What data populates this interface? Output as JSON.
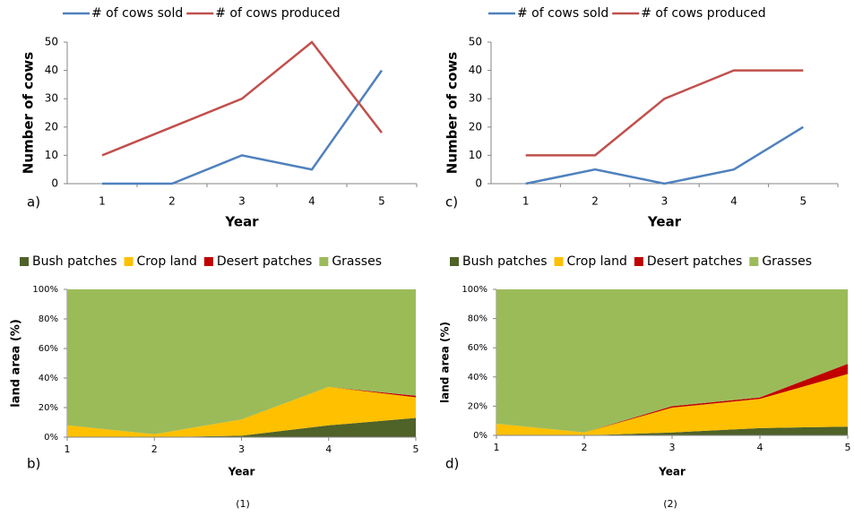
{
  "chart_data": [
    {
      "type": "line",
      "panel_label": "a)",
      "ylabel": "Number of cows",
      "xlabel": "Year",
      "categories": [
        "1",
        "2",
        "3",
        "4",
        "5"
      ],
      "series": [
        {
          "name": "# of cows sold",
          "color": "#4f81bd",
          "values": [
            0,
            0,
            10,
            5,
            40
          ]
        },
        {
          "name": "# of cows produced",
          "color": "#c0504d",
          "values": [
            10,
            20,
            30,
            50,
            18
          ]
        }
      ],
      "ylim": [
        0,
        50
      ],
      "yticks": [
        0,
        10,
        20,
        30,
        40,
        50
      ],
      "legend": "top"
    },
    {
      "type": "line",
      "panel_label": "c)",
      "ylabel": "Number of cows",
      "xlabel": "Year",
      "categories": [
        "1",
        "2",
        "3",
        "4",
        "5"
      ],
      "series": [
        {
          "name": "# of cows sold",
          "color": "#4f81bd",
          "values": [
            0,
            5,
            0,
            5,
            20
          ]
        },
        {
          "name": "# of cows produced",
          "color": "#c0504d",
          "values": [
            10,
            10,
            30,
            40,
            40
          ]
        }
      ],
      "ylim": [
        0,
        50
      ],
      "yticks": [
        0,
        10,
        20,
        30,
        40,
        50
      ],
      "legend": "top"
    },
    {
      "type": "area",
      "panel_label": "b)",
      "ylabel": "land area (%)",
      "xlabel": "Year",
      "x": [
        1,
        2,
        3,
        4,
        5
      ],
      "xlim": [
        1,
        5
      ],
      "xticks": [
        1,
        2,
        3,
        4,
        5
      ],
      "series": [
        {
          "name": "Bush patches",
          "color": "#4f6228",
          "values": [
            0,
            0,
            1,
            8,
            13
          ]
        },
        {
          "name": "Crop land",
          "color": "#ffc000",
          "values": [
            8,
            2,
            11,
            26,
            14
          ]
        },
        {
          "name": "Desert patches",
          "color": "#c00000",
          "values": [
            0,
            0,
            0,
            0,
            1
          ]
        },
        {
          "name": "Grasses",
          "color": "#9bbb59",
          "values": [
            92,
            98,
            88,
            66,
            72
          ]
        }
      ],
      "ylim": [
        0,
        100
      ],
      "yticks": [
        {
          "value": 0,
          "label": "0%"
        },
        {
          "value": 20,
          "label": "20%"
        },
        {
          "value": 40,
          "label": "40%"
        },
        {
          "value": 60,
          "label": "60%"
        },
        {
          "value": 80,
          "label": "80%"
        },
        {
          "value": 100,
          "label": "100%"
        }
      ],
      "legend": "top"
    },
    {
      "type": "area",
      "panel_label": "d)",
      "ylabel": "land area (%)",
      "xlabel": "Year",
      "x": [
        1,
        2,
        3,
        4,
        5
      ],
      "xlim": [
        1,
        5
      ],
      "xticks": [
        1,
        2,
        3,
        4,
        5
      ],
      "series": [
        {
          "name": "Bush patches",
          "color": "#4f6228",
          "values": [
            0,
            0,
            2,
            5,
            6
          ]
        },
        {
          "name": "Crop land",
          "color": "#ffc000",
          "values": [
            8,
            2,
            17,
            20,
            36
          ]
        },
        {
          "name": "Desert patches",
          "color": "#c00000",
          "values": [
            0,
            0,
            1,
            1,
            7
          ]
        },
        {
          "name": "Grasses",
          "color": "#9bbb59",
          "values": [
            92,
            98,
            80,
            74,
            51
          ]
        }
      ],
      "ylim": [
        0,
        100
      ],
      "yticks": [
        {
          "value": 0,
          "label": "0%"
        },
        {
          "value": 20,
          "label": "20%"
        },
        {
          "value": 40,
          "label": "40%"
        },
        {
          "value": 60,
          "label": "60%"
        },
        {
          "value": 80,
          "label": "80%"
        },
        {
          "value": 100,
          "label": "100%"
        }
      ],
      "legend": "top"
    }
  ],
  "figure_labels": [
    "(1)",
    "(2)"
  ]
}
